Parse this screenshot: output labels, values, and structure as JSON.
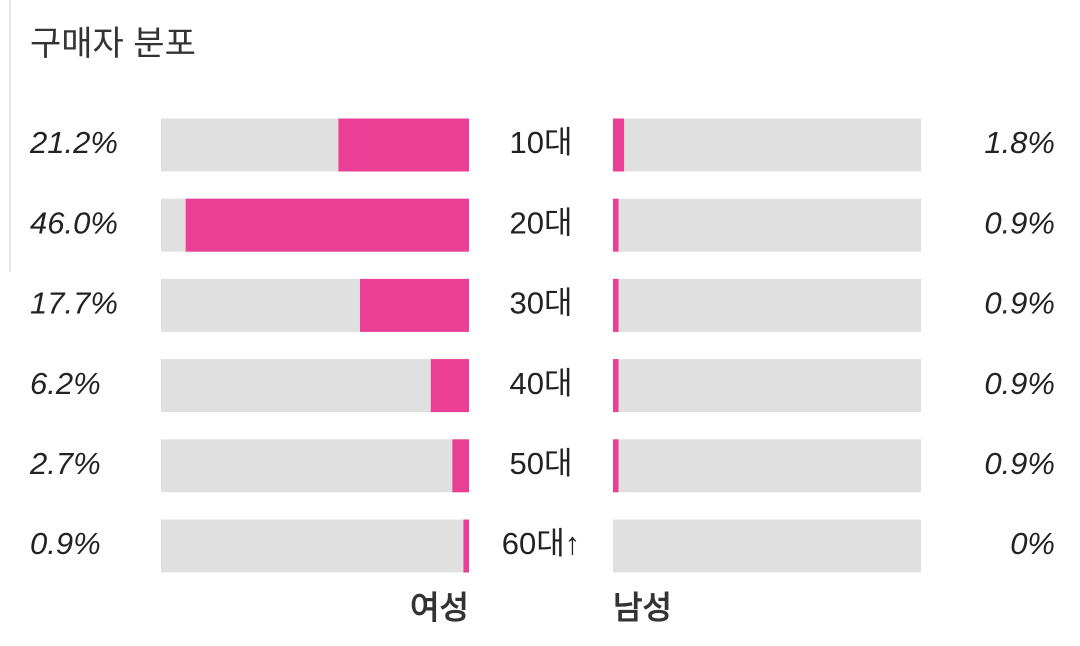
{
  "chart_data": {
    "type": "butterfly",
    "title": "구매자 분포",
    "categories": [
      "10대",
      "20대",
      "30대",
      "40대",
      "50대",
      "60대↑"
    ],
    "xlim": [
      0,
      50
    ],
    "track_color": "#e0e0e0",
    "series": [
      {
        "name": "여성",
        "color": "#ea3f94",
        "values": [
          21.2,
          46.0,
          17.7,
          6.2,
          2.7,
          0.9
        ],
        "value_labels": [
          "21.2%",
          "46.0%",
          "17.7%",
          "6.2%",
          "2.7%",
          "0.9%"
        ]
      },
      {
        "name": "남성",
        "color": "#ea3f94",
        "values": [
          1.8,
          0.9,
          0.9,
          0.9,
          0.9,
          0
        ],
        "value_labels": [
          "1.8%",
          "0.9%",
          "0.9%",
          "0.9%",
          "0.9%",
          "0%"
        ]
      }
    ]
  }
}
